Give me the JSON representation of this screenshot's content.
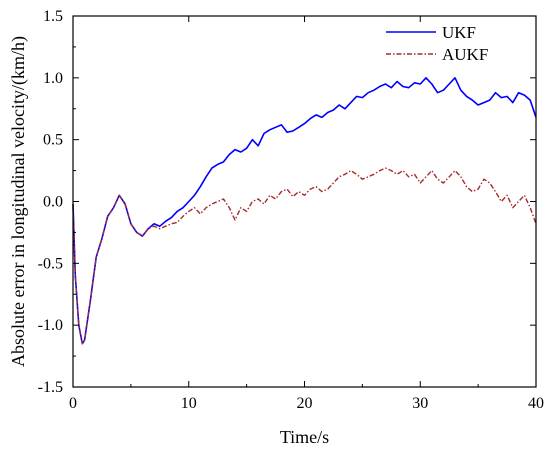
{
  "chart_data": {
    "type": "line",
    "xlabel": "Time/s",
    "ylabel": "Absolute error in longitudinal velocity/(km/h)",
    "xlim": [
      0,
      40
    ],
    "ylim": [
      -1.5,
      1.5
    ],
    "xticks": [
      0,
      10,
      20,
      30,
      40
    ],
    "xtick_labels": [
      "0",
      "10",
      "20",
      "30",
      "40"
    ],
    "yticks": [
      -1.5,
      -1.0,
      -0.5,
      0.0,
      0.5,
      1.0,
      1.5
    ],
    "ytick_labels": [
      "-1.5",
      "-1.0",
      "-0.5",
      "0.0",
      "0.5",
      "1.0",
      "1.5"
    ],
    "grid": false,
    "legend_position": "top-right",
    "series": [
      {
        "name": "UKF",
        "color": "#0000ff",
        "line_style": "solid",
        "x": [
          0,
          0.2,
          0.5,
          0.8,
          1.0,
          1.5,
          2.0,
          2.5,
          3.0,
          3.5,
          4.0,
          4.5,
          5.0,
          5.5,
          6.0,
          6.5,
          7.0,
          7.5,
          8.0,
          8.5,
          9.0,
          9.5,
          10.0,
          10.5,
          11.0,
          11.5,
          12.0,
          12.5,
          13.0,
          13.5,
          14.0,
          14.5,
          15.0,
          15.5,
          16.0,
          16.5,
          17.0,
          17.5,
          18.0,
          18.5,
          19.0,
          19.5,
          20.0,
          20.5,
          21.0,
          21.5,
          22.0,
          22.5,
          23.0,
          23.5,
          24.0,
          24.5,
          25.0,
          25.5,
          26.0,
          26.5,
          27.0,
          27.5,
          28.0,
          28.5,
          29.0,
          29.5,
          30.0,
          30.5,
          31.0,
          31.5,
          32.0,
          32.5,
          33.0,
          33.5,
          34.0,
          34.5,
          35.0,
          35.5,
          36.0,
          36.5,
          37.0,
          37.5,
          38.0,
          38.5,
          39.0,
          39.5,
          40.0
        ],
        "y": [
          -0.02,
          -0.6,
          -1.0,
          -1.15,
          -1.12,
          -0.8,
          -0.45,
          -0.3,
          -0.12,
          -0.05,
          0.05,
          -0.02,
          -0.18,
          -0.25,
          -0.28,
          -0.22,
          -0.18,
          -0.2,
          -0.16,
          -0.13,
          -0.08,
          -0.05,
          0.0,
          0.05,
          0.12,
          0.2,
          0.27,
          0.3,
          0.32,
          0.38,
          0.42,
          0.4,
          0.43,
          0.5,
          0.45,
          0.55,
          0.58,
          0.6,
          0.62,
          0.56,
          0.57,
          0.6,
          0.63,
          0.67,
          0.7,
          0.68,
          0.72,
          0.74,
          0.78,
          0.75,
          0.8,
          0.85,
          0.84,
          0.88,
          0.9,
          0.93,
          0.95,
          0.92,
          0.97,
          0.93,
          0.92,
          0.96,
          0.95,
          1.0,
          0.95,
          0.88,
          0.9,
          0.95,
          1.0,
          0.9,
          0.85,
          0.82,
          0.78,
          0.8,
          0.82,
          0.88,
          0.84,
          0.85,
          0.8,
          0.88,
          0.86,
          0.82,
          0.68
        ]
      },
      {
        "name": "AUKF",
        "color": "#a52a2a",
        "line_style": "dash-dot",
        "x": [
          0,
          0.2,
          0.5,
          0.8,
          1.0,
          1.5,
          2.0,
          2.5,
          3.0,
          3.5,
          4.0,
          4.5,
          5.0,
          5.5,
          6.0,
          6.5,
          7.0,
          7.5,
          8.0,
          8.5,
          9.0,
          9.5,
          10.0,
          10.5,
          11.0,
          11.5,
          12.0,
          12.5,
          13.0,
          13.5,
          14.0,
          14.5,
          15.0,
          15.5,
          16.0,
          16.5,
          17.0,
          17.5,
          18.0,
          18.5,
          19.0,
          19.5,
          20.0,
          20.5,
          21.0,
          21.5,
          22.0,
          22.5,
          23.0,
          23.5,
          24.0,
          24.5,
          25.0,
          25.5,
          26.0,
          26.5,
          27.0,
          27.5,
          28.0,
          28.5,
          29.0,
          29.5,
          30.0,
          30.5,
          31.0,
          31.5,
          32.0,
          32.5,
          33.0,
          33.5,
          34.0,
          34.5,
          35.0,
          35.5,
          36.0,
          36.5,
          37.0,
          37.5,
          38.0,
          38.5,
          39.0,
          39.5,
          40.0
        ],
        "y": [
          -0.02,
          -0.6,
          -1.0,
          -1.15,
          -1.12,
          -0.8,
          -0.45,
          -0.3,
          -0.12,
          -0.05,
          0.05,
          -0.02,
          -0.18,
          -0.25,
          -0.28,
          -0.22,
          -0.2,
          -0.22,
          -0.2,
          -0.18,
          -0.17,
          -0.12,
          -0.08,
          -0.05,
          -0.1,
          -0.05,
          -0.02,
          0.0,
          0.02,
          -0.05,
          -0.15,
          -0.05,
          -0.08,
          0.0,
          0.02,
          -0.02,
          0.05,
          0.02,
          0.08,
          0.1,
          0.04,
          0.08,
          0.05,
          0.1,
          0.12,
          0.08,
          0.1,
          0.15,
          0.2,
          0.22,
          0.25,
          0.22,
          0.18,
          0.2,
          0.22,
          0.25,
          0.27,
          0.25,
          0.22,
          0.25,
          0.2,
          0.22,
          0.15,
          0.2,
          0.25,
          0.18,
          0.15,
          0.2,
          0.25,
          0.2,
          0.12,
          0.08,
          0.1,
          0.18,
          0.15,
          0.08,
          0.0,
          0.05,
          -0.05,
          0.0,
          0.05,
          -0.05,
          -0.18
        ]
      }
    ]
  }
}
